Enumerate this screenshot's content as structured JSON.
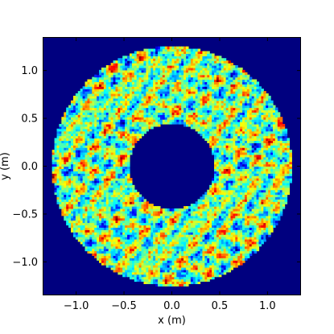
{
  "chart_data": {
    "type": "heatmap",
    "title": "",
    "xlabel": "x (m)",
    "ylabel": "y (m)",
    "xlim": [
      -1.35,
      1.35
    ],
    "ylim": [
      -1.35,
      1.35
    ],
    "xticks": [
      -1.0,
      -0.5,
      0.0,
      0.5,
      1.0
    ],
    "yticks": [
      -1.0,
      -0.5,
      0.0,
      0.5,
      1.0
    ],
    "xtick_labels": [
      "−1.0",
      "−0.5",
      "0.0",
      "0.5",
      "1.0"
    ],
    "ytick_labels": [
      "−1.0",
      "−0.5",
      "0.0",
      "0.5",
      "1.0"
    ],
    "grid": false,
    "colormap": "jet",
    "background_color": "#00007f",
    "annulus": {
      "center": [
        0.0,
        0.0
      ],
      "inner_radius": 0.45,
      "outer_radius": 1.25,
      "cells_per_axis": 110,
      "value_range": [
        0.0,
        1.0
      ],
      "typical_value": 0.5,
      "pattern": "speckle"
    }
  }
}
